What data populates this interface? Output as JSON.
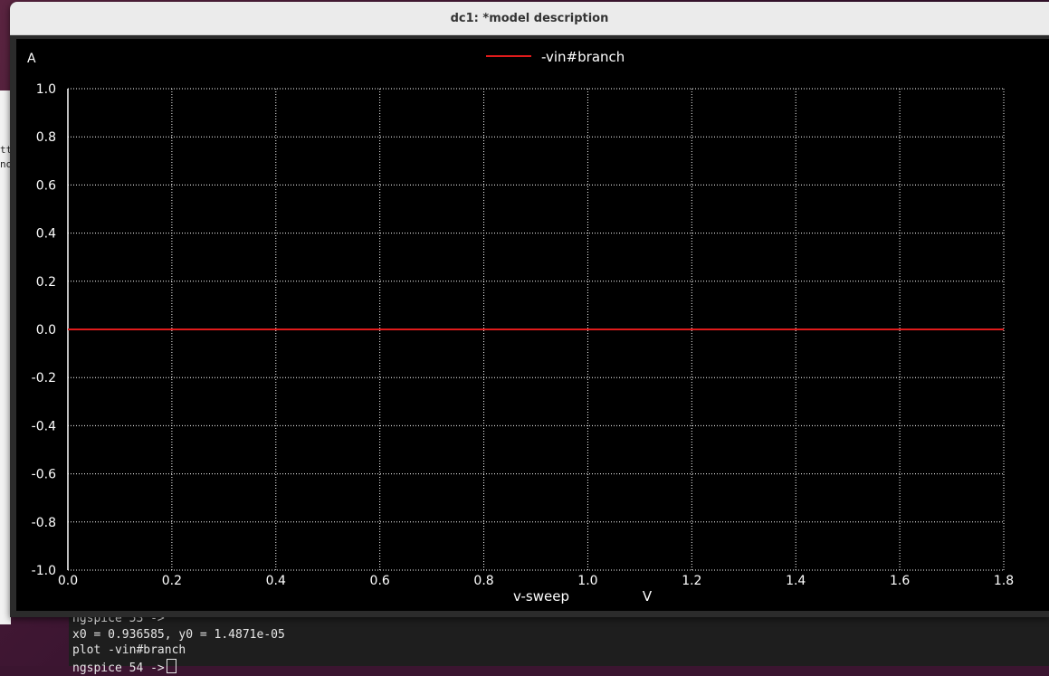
{
  "window": {
    "title": "dc1: *model description"
  },
  "background": {
    "fragment_text": [
      "tt",
      "no"
    ]
  },
  "terminal": {
    "lines": [
      "ngspice 53 ->",
      "x0 = 0.936585, y0 = 1.4871e-05",
      "plot -vin#branch",
      "ngspice 54 ->"
    ]
  },
  "chart_data": {
    "type": "line",
    "ylabel": "A",
    "xlabel": "v-sweep",
    "xunit": "V",
    "xlim": [
      0,
      1.8
    ],
    "ylim": [
      -1,
      1
    ],
    "x_ticks": [
      0.0,
      0.2,
      0.4,
      0.6,
      0.8,
      1.0,
      1.2,
      1.4,
      1.6,
      1.8
    ],
    "x_tick_labels": [
      "0.0",
      "0.2",
      "0.4",
      "0.6",
      "0.8",
      "1.0",
      "1.2",
      "1.4",
      "1.6",
      "1.8"
    ],
    "y_ticks": [
      1.0,
      0.8,
      0.6,
      0.4,
      0.2,
      0.0,
      -0.2,
      -0.4,
      -0.6,
      -0.8,
      -1.0
    ],
    "y_tick_labels": [
      "1.0",
      "0.8",
      "0.6",
      "0.4",
      "0.2",
      "0.0",
      "-0.2",
      "-0.4",
      "-0.6",
      "-0.8",
      "-1.0"
    ],
    "grid": true,
    "legend": "top-center",
    "series": [
      {
        "name": "-vin#branch",
        "color": "#e01b1b",
        "x": [
          0,
          1.8
        ],
        "y": [
          0,
          0
        ]
      }
    ],
    "colors": {
      "background": "#000000",
      "grid": "#ffffff",
      "text": "#ffffff"
    }
  }
}
